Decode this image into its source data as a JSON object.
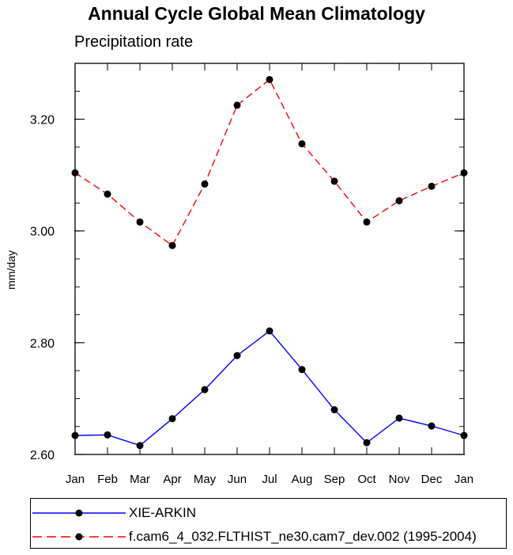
{
  "chart_data": {
    "type": "line",
    "title": "Annual Cycle Global Mean Climatology",
    "subtitle": "Precipitation rate",
    "xlabel": "",
    "ylabel": "mm/day",
    "categories": [
      "Jan",
      "Feb",
      "Mar",
      "Apr",
      "May",
      "Jun",
      "Jul",
      "Aug",
      "Sep",
      "Oct",
      "Nov",
      "Dec",
      "Jan"
    ],
    "ylim": [
      2.6,
      3.3
    ],
    "yticks": [
      "2.60",
      "2.80",
      "3.00",
      "3.20"
    ],
    "ytick_values": [
      2.6,
      2.8,
      3.0,
      3.2
    ],
    "grid": false,
    "legend_position": "bottom",
    "series": [
      {
        "name": "XIE-ARKIN",
        "color": "#0000ff",
        "style": "solid",
        "values": [
          2.634,
          2.635,
          2.616,
          2.664,
          2.716,
          2.777,
          2.821,
          2.752,
          2.68,
          2.621,
          2.665,
          2.651,
          2.634
        ]
      },
      {
        "name": "f.cam6_4_032.FLTHIST_ne30.cam7_dev.002 (1995-2004)",
        "color": "#ff0000",
        "style": "dashed",
        "values": [
          3.104,
          3.066,
          3.016,
          2.974,
          3.084,
          3.225,
          3.271,
          3.156,
          3.089,
          3.016,
          3.054,
          3.08,
          3.104
        ]
      }
    ]
  }
}
